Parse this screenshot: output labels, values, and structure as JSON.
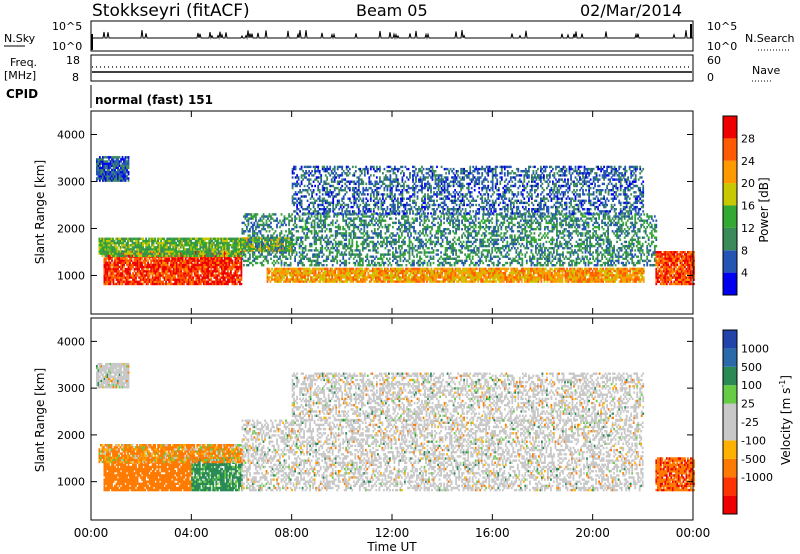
{
  "header": {
    "station": "Stokkseyri (fitACF)",
    "beam": "Beam 05",
    "date": "02/Mar/2014"
  },
  "top_panels": {
    "nsky_label": "N.Sky",
    "nsky_ticks": [
      "10^5",
      "10^0"
    ],
    "nsearch_label": "N.Search",
    "nsearch_ticks": [
      "10^5",
      "10^0"
    ],
    "freq_label": "Freq.",
    "freq_unit": "[MHz]",
    "freq_ticks": [
      "18",
      "8"
    ],
    "nave_label": "Nave",
    "nave_ticks": [
      "60",
      "0"
    ],
    "cpid_label": "CPID",
    "cpid_value": "normal (fast) 151"
  },
  "colors": {
    "power_scale": [
      "#0000ee",
      "#2455b4",
      "#3a8a5a",
      "#33a833",
      "#c8c800",
      "#ff9900",
      "#ff5a00",
      "#ee0000"
    ],
    "velocity_scale": [
      "#ee0000",
      "#ff3300",
      "#ff7a00",
      "#ffb000",
      "#c8c8c8",
      "#c8c8c8",
      "#66cc44",
      "#2a8a55",
      "#2a6aa8",
      "#2244aa"
    ]
  },
  "chart_data": [
    {
      "type": "heatmap",
      "panel": "power",
      "ylabel": "Slant Range [km]",
      "ylim": [
        180,
        4500
      ],
      "yticks": [
        "4000",
        "3000",
        "2000",
        "1000"
      ],
      "colorbar_label": "Power [dB]",
      "colorbar_ticks": [
        "28",
        "24",
        "20",
        "16",
        "12",
        "8",
        "4"
      ],
      "colorbar_range": [
        0,
        32
      ],
      "bands": [
        {
          "x": [
            0.5,
            6.0
          ],
          "y": [
            800,
            1500
          ],
          "level": 28
        },
        {
          "x": [
            0.3,
            6.0
          ],
          "y": [
            1400,
            1800
          ],
          "level": 14
        },
        {
          "x": [
            6.0,
            8.0
          ],
          "y": [
            1500,
            1800
          ],
          "level": 18
        },
        {
          "x": [
            7.0,
            22.0
          ],
          "y": [
            850,
            1150
          ],
          "level": 22
        },
        {
          "x": [
            6.0,
            22.5
          ],
          "y": [
            1200,
            2300
          ],
          "level": 10
        },
        {
          "x": [
            8.0,
            22.0
          ],
          "y": [
            2300,
            3300
          ],
          "level": 7
        },
        {
          "x": [
            22.5,
            24.0
          ],
          "y": [
            800,
            1500
          ],
          "level": 27
        },
        {
          "x": [
            0.2,
            1.5
          ],
          "y": [
            3000,
            3500
          ],
          "level": 6
        }
      ]
    },
    {
      "type": "heatmap",
      "panel": "velocity",
      "ylabel": "Slant Range [km]",
      "xlabel": "Time UT",
      "xlim": [
        0,
        24
      ],
      "xticks": [
        "00:00",
        "04:00",
        "08:00",
        "12:00",
        "16:00",
        "20:00",
        "00:00"
      ],
      "ylim": [
        180,
        4500
      ],
      "yticks": [
        "4000",
        "3000",
        "2000",
        "1000"
      ],
      "colorbar_label": "Velocity [m s^-1]",
      "colorbar_ticks": [
        "1000",
        "500",
        "100",
        "25",
        "-25",
        "-100",
        "-500",
        "-1000"
      ],
      "bands": [
        {
          "x": [
            0.5,
            4.0
          ],
          "y": [
            800,
            1500
          ],
          "value": -300
        },
        {
          "x": [
            4.0,
            6.0
          ],
          "y": [
            800,
            1500
          ],
          "value": 200
        },
        {
          "x": [
            0.3,
            6.0
          ],
          "y": [
            1400,
            1800
          ],
          "value": -150
        },
        {
          "x": [
            6.0,
            22.0
          ],
          "y": [
            800,
            2300
          ],
          "value": 0
        },
        {
          "x": [
            8.0,
            22.0
          ],
          "y": [
            2300,
            3300
          ],
          "value": 0
        },
        {
          "x": [
            22.5,
            24.0
          ],
          "y": [
            800,
            1500
          ],
          "value": -400
        },
        {
          "x": [
            0.2,
            1.5
          ],
          "y": [
            3000,
            3500
          ],
          "value": 0
        }
      ]
    }
  ]
}
